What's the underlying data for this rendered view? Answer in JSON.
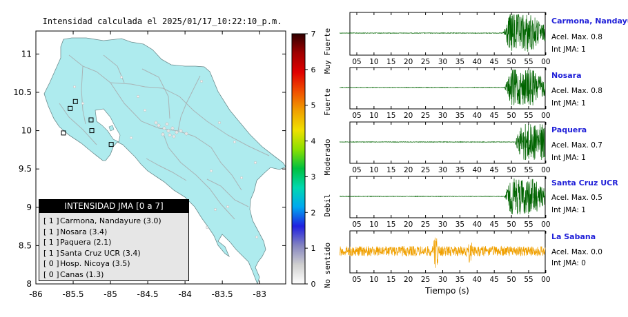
{
  "map": {
    "title": "Intensidad calculada el 2025/01/17_10:22:10_p.m.",
    "y_ticks": [
      {
        "v": 11,
        "t": "11"
      },
      {
        "v": 10.5,
        "t": "10.5"
      },
      {
        "v": 10,
        "t": "10"
      },
      {
        "v": 9.5,
        "t": "9.5"
      },
      {
        "v": 9,
        "t": "9"
      },
      {
        "v": 8.5,
        "t": "8.5"
      },
      {
        "v": 8,
        "t": "8"
      }
    ],
    "x_ticks": [
      {
        "v": -86,
        "t": "-86"
      },
      {
        "v": -85.5,
        "t": "-85.5"
      },
      {
        "v": -85,
        "t": "-85"
      },
      {
        "v": -84.5,
        "t": "-84.5"
      },
      {
        "v": -84,
        "t": "-84"
      },
      {
        "v": -83.5,
        "t": "-83.5"
      },
      {
        "v": -83,
        "t": "-83"
      }
    ],
    "xlim": [
      -86,
      -82.65
    ],
    "ylim": [
      8,
      11.3
    ],
    "stations": [
      {
        "lon": -85.47,
        "lat": 10.38
      },
      {
        "lon": -85.54,
        "lat": 10.29
      },
      {
        "lon": -85.26,
        "lat": 10.14
      },
      {
        "lon": -85.63,
        "lat": 9.97
      },
      {
        "lon": -85.25,
        "lat": 10.0
      },
      {
        "lon": -84.99,
        "lat": 9.82
      }
    ]
  },
  "legend": {
    "title": "INTENSIDAD JMA [0 a 7]",
    "items": [
      {
        "level": "[ 1 ]",
        "name": "Carmona, Nandayure (3.0)"
      },
      {
        "level": "[ 1 ]",
        "name": "Nosara (3.4)"
      },
      {
        "level": "[ 1 ]",
        "name": "Paquera (2.1)"
      },
      {
        "level": "[ 1 ]",
        "name": "Santa Cruz UCR (3.4)"
      },
      {
        "level": "[ 0 ]",
        "name": "Hosp. Nicoya (3.5)"
      },
      {
        "level": "[ 0 ]",
        "name": "Canas (1.3)"
      }
    ]
  },
  "colorbar": {
    "ticks": [
      "0",
      "1",
      "2",
      "3",
      "4",
      "5",
      "6",
      "7"
    ],
    "labels": [
      "No sentido",
      "Debil",
      "Moderado",
      "Fuerte",
      "Muy Fuerte"
    ],
    "colors": [
      "#ffffff",
      "#cfcfcf",
      "#8484c0",
      "#2020e0",
      "#00a8f0",
      "#00d8b0",
      "#00c040",
      "#8ce000",
      "#f0e000",
      "#f0a000",
      "#f05000",
      "#e00000",
      "#a00000",
      "#300000"
    ]
  },
  "chart_data": {
    "type": "line",
    "title": "Intensidad calculada el 2025/01/17_10:22:10_p.m.",
    "xlabel": "Tiempo (s)",
    "x_ticks": [
      "05",
      "10",
      "15",
      "20",
      "25",
      "30",
      "35",
      "40",
      "45",
      "50",
      "55",
      "00"
    ],
    "series": [
      {
        "name": "Carmona, Nandayure",
        "acel_label": "Acel. Max. 0.8",
        "int_label": "Int JMA: 1",
        "color": "#006400",
        "onset": 47.5,
        "peak": 0.8
      },
      {
        "name": "Nosara",
        "acel_label": "Acel. Max. 0.8",
        "int_label": "Int JMA: 1",
        "color": "#006400",
        "onset": 48.0,
        "peak": 0.8
      },
      {
        "name": "Paquera",
        "acel_label": "Acel. Max. 0.7",
        "int_label": "Int JMA: 1",
        "color": "#006400",
        "onset": 51.0,
        "peak": 0.7
      },
      {
        "name": "Santa Cruz UCR",
        "acel_label": "Acel. Max. 0.5",
        "int_label": "Int JMA: 1",
        "color": "#006400",
        "onset": 48.0,
        "peak": 0.5
      },
      {
        "name": "La Sabana",
        "acel_label": "Acel. Max. 0.0",
        "int_label": "Int JMA: 0",
        "color": "#f0a000",
        "onset": 0,
        "peak": 0.0
      }
    ]
  }
}
